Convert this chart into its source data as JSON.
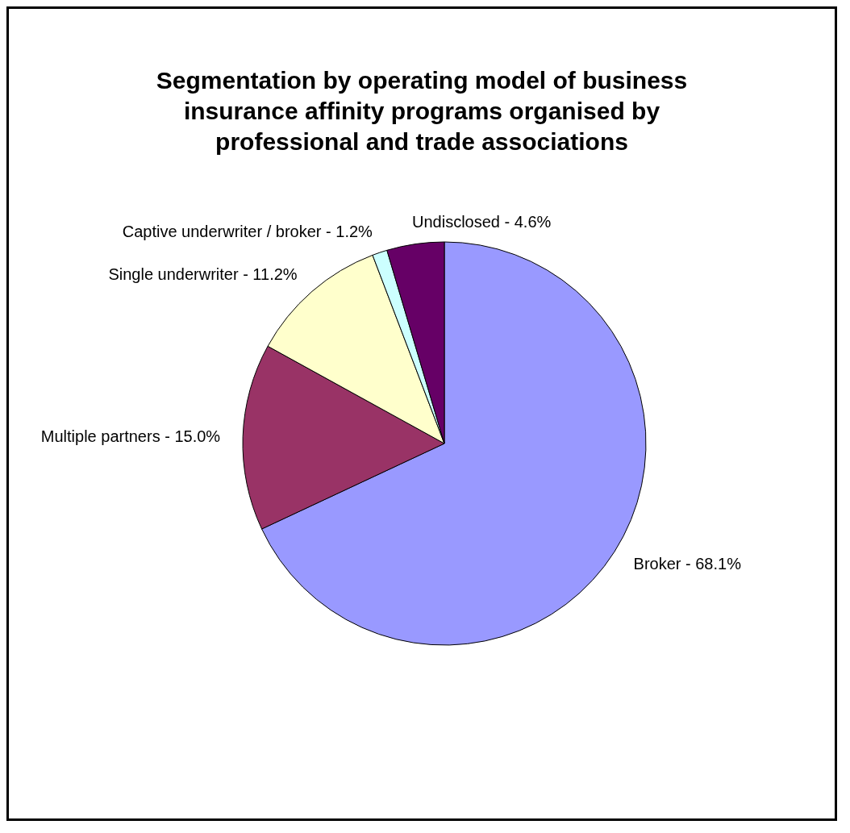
{
  "chart_data": {
    "type": "pie",
    "title": "Segmentation by operating model of business insurance affinity programs organised by professional and trade associations",
    "categories": [
      "Broker - 68.1%",
      "Multiple partners - 15.0%",
      "Single underwriter - 11.2%",
      "Captive underwriter / broker - 1.2%",
      "Undisclosed - 4.6%"
    ],
    "values": [
      68.1,
      15.0,
      11.2,
      1.2,
      4.6
    ],
    "colors": [
      "#9999ff",
      "#993366",
      "#ffffcc",
      "#ccffff",
      "#660066"
    ],
    "legend": false
  }
}
